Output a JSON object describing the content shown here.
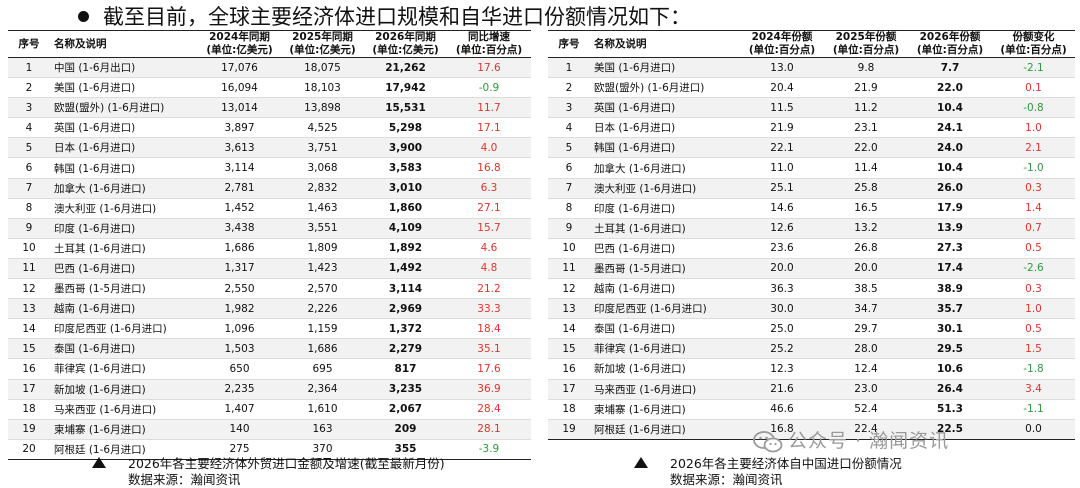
{
  "heading": "截至目前，全球主要经济体进口规模和自华进口份额情况如下：",
  "table1": {
    "headers": [
      "序号",
      "名称及说明",
      "2024年同期\n(单位:亿美元)",
      "2025年同期\n(单位:亿美元)",
      "2026年同期\n(单位:亿美元)",
      "同比增速\n(单位:百分点)"
    ],
    "rows": [
      [
        "1",
        "中国 (1-6月出口)",
        "17,076",
        "18,075",
        "21,262",
        "17.6"
      ],
      [
        "2",
        "美国 (1-6月进口)",
        "16,094",
        "18,103",
        "17,942",
        "-0.9"
      ],
      [
        "3",
        "欧盟(盟外) (1-6月进口)",
        "13,014",
        "13,898",
        "15,531",
        "11.7"
      ],
      [
        "4",
        "英国 (1-6月进口)",
        "3,897",
        "4,525",
        "5,298",
        "17.1"
      ],
      [
        "5",
        "日本 (1-6月进口)",
        "3,613",
        "3,751",
        "3,900",
        "4.0"
      ],
      [
        "6",
        "韩国 (1-6月进口)",
        "3,114",
        "3,068",
        "3,583",
        "16.8"
      ],
      [
        "7",
        "加拿大 (1-6月进口)",
        "2,781",
        "2,832",
        "3,010",
        "6.3"
      ],
      [
        "8",
        "澳大利亚 (1-6月进口)",
        "1,452",
        "1,463",
        "1,860",
        "27.1"
      ],
      [
        "9",
        "印度 (1-6月进口)",
        "3,438",
        "3,551",
        "4,109",
        "15.7"
      ],
      [
        "10",
        "土耳其 (1-6月进口)",
        "1,686",
        "1,809",
        "1,892",
        "4.6"
      ],
      [
        "11",
        "巴西 (1-6月进口)",
        "1,317",
        "1,423",
        "1,492",
        "4.8"
      ],
      [
        "12",
        "墨西哥 (1-5月进口)",
        "2,550",
        "2,570",
        "3,114",
        "21.2"
      ],
      [
        "13",
        "越南 (1-6月进口)",
        "1,982",
        "2,226",
        "2,969",
        "33.3"
      ],
      [
        "14",
        "印度尼西亚 (1-6月进口)",
        "1,096",
        "1,159",
        "1,372",
        "18.4"
      ],
      [
        "15",
        "泰国 (1-6月进口)",
        "1,503",
        "1,686",
        "2,279",
        "35.1"
      ],
      [
        "16",
        "菲律宾 (1-6月进口)",
        "650",
        "695",
        "817",
        "17.6"
      ],
      [
        "17",
        "新加坡 (1-6月进口)",
        "2,235",
        "2,364",
        "3,235",
        "36.9"
      ],
      [
        "18",
        "马来西亚 (1-6月进口)",
        "1,407",
        "1,610",
        "2,067",
        "28.4"
      ],
      [
        "19",
        "柬埔寨 (1-6月进口)",
        "140",
        "163",
        "209",
        "28.1"
      ],
      [
        "20",
        "阿根廷 (1-6月进口)",
        "275",
        "370",
        "355",
        "-3.9"
      ]
    ]
  },
  "table2": {
    "headers": [
      "序号",
      "名称及说明",
      "2024年份额\n(单位:百分点)",
      "2025年份额\n(单位:百分点)",
      "2026年份额\n(单位:百分点)",
      "份额变化\n(单位:百分点)"
    ],
    "rows": [
      [
        "1",
        "美国 (1-6月进口)",
        "13.0",
        "9.8",
        "7.7",
        "-2.1"
      ],
      [
        "2",
        "欧盟(盟外) (1-6月进口)",
        "20.4",
        "21.9",
        "22.0",
        "0.1"
      ],
      [
        "3",
        "英国 (1-6月进口)",
        "11.5",
        "11.2",
        "10.4",
        "-0.8"
      ],
      [
        "4",
        "日本 (1-6月进口)",
        "21.9",
        "23.1",
        "24.1",
        "1.0"
      ],
      [
        "5",
        "韩国 (1-6月进口)",
        "22.1",
        "22.0",
        "24.0",
        "2.1"
      ],
      [
        "6",
        "加拿大 (1-6月进口)",
        "11.0",
        "11.4",
        "10.4",
        "-1.0"
      ],
      [
        "7",
        "澳大利亚 (1-6月进口)",
        "25.1",
        "25.8",
        "26.0",
        "0.3"
      ],
      [
        "8",
        "印度 (1-6月进口)",
        "14.6",
        "16.5",
        "17.9",
        "1.4"
      ],
      [
        "9",
        "土耳其 (1-6月进口)",
        "12.6",
        "13.2",
        "13.9",
        "0.7"
      ],
      [
        "10",
        "巴西 (1-6月进口)",
        "23.6",
        "26.8",
        "27.3",
        "0.5"
      ],
      [
        "11",
        "墨西哥 (1-5月进口)",
        "20.0",
        "20.0",
        "17.4",
        "-2.6"
      ],
      [
        "12",
        "越南 (1-6月进口)",
        "36.3",
        "38.5",
        "38.9",
        "0.3"
      ],
      [
        "13",
        "印度尼西亚 (1-6月进口)",
        "30.0",
        "34.7",
        "35.7",
        "1.0"
      ],
      [
        "14",
        "泰国 (1-6月进口)",
        "25.0",
        "29.7",
        "30.1",
        "0.5"
      ],
      [
        "15",
        "菲律宾 (1-6月进口)",
        "25.2",
        "28.0",
        "29.5",
        "1.5"
      ],
      [
        "16",
        "新加坡 (1-6月进口)",
        "12.3",
        "12.4",
        "10.6",
        "-1.8"
      ],
      [
        "17",
        "马来西亚 (1-6月进口)",
        "21.6",
        "23.0",
        "26.4",
        "3.4"
      ],
      [
        "18",
        "柬埔寨 (1-6月进口)",
        "46.6",
        "52.4",
        "51.3",
        "-1.1"
      ],
      [
        "19",
        "阿根廷 (1-6月进口)",
        "16.8",
        "22.4",
        "22.5",
        "0.0"
      ]
    ]
  },
  "caption1": {
    "title": "2026年各主要经济体外贸进口金额及增速(截至最新月份)",
    "source": "数据来源：瀚闻资讯"
  },
  "caption2": {
    "title": "2026年各主要经济体自中国进口份额情况",
    "source": "数据来源：瀚闻资讯"
  },
  "watermark": {
    "text": "公众号 · 瀚闻资讯",
    "icon": "wechat-icon"
  },
  "colors": {
    "positive": "#e0332d",
    "negative": "#2e9a3a",
    "zero": "#111111",
    "stripe": "#f2f2f2"
  }
}
